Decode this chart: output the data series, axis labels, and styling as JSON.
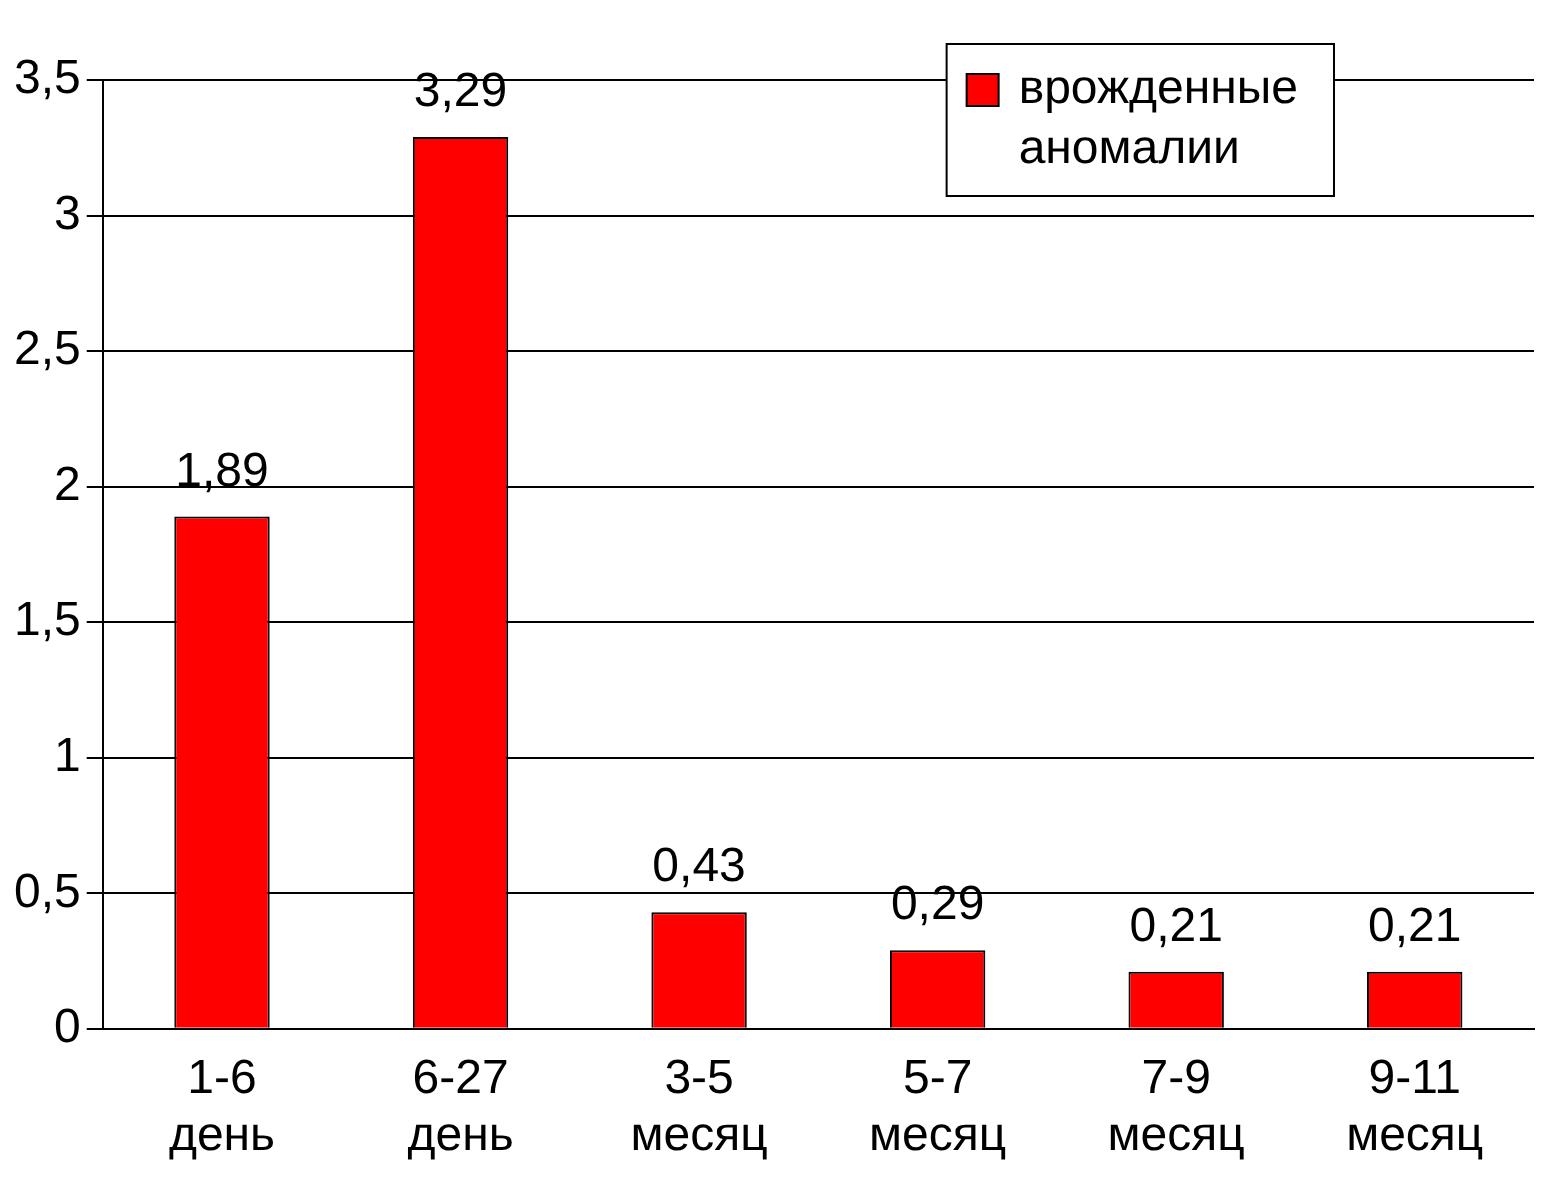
{
  "chart_data": {
    "type": "bar",
    "categories": [
      "1-6 день",
      "6-27 день",
      "3-5 месяц",
      "5-7 месяц",
      "7-9 месяц",
      "9-11 месяц"
    ],
    "series": [
      {
        "name": "врожденные аномалии",
        "color": "#ff0000",
        "values": [
          1.89,
          3.29,
          0.43,
          0.29,
          0.21,
          0.21
        ],
        "value_labels": [
          "1,89",
          "3,29",
          "0,43",
          "0,29",
          "0,21",
          "0,21"
        ]
      }
    ],
    "ylim": [
      0,
      3.5
    ],
    "yticks": [
      0,
      {
        "value": 0.5,
        "label": "0,5"
      },
      1,
      {
        "value": 1.5,
        "label": "1,5"
      },
      2,
      {
        "value": 2.5,
        "label": "2,5"
      },
      3,
      {
        "value": 3.5,
        "label": "3,5"
      }
    ],
    "grid": "y",
    "legend": "top right"
  }
}
